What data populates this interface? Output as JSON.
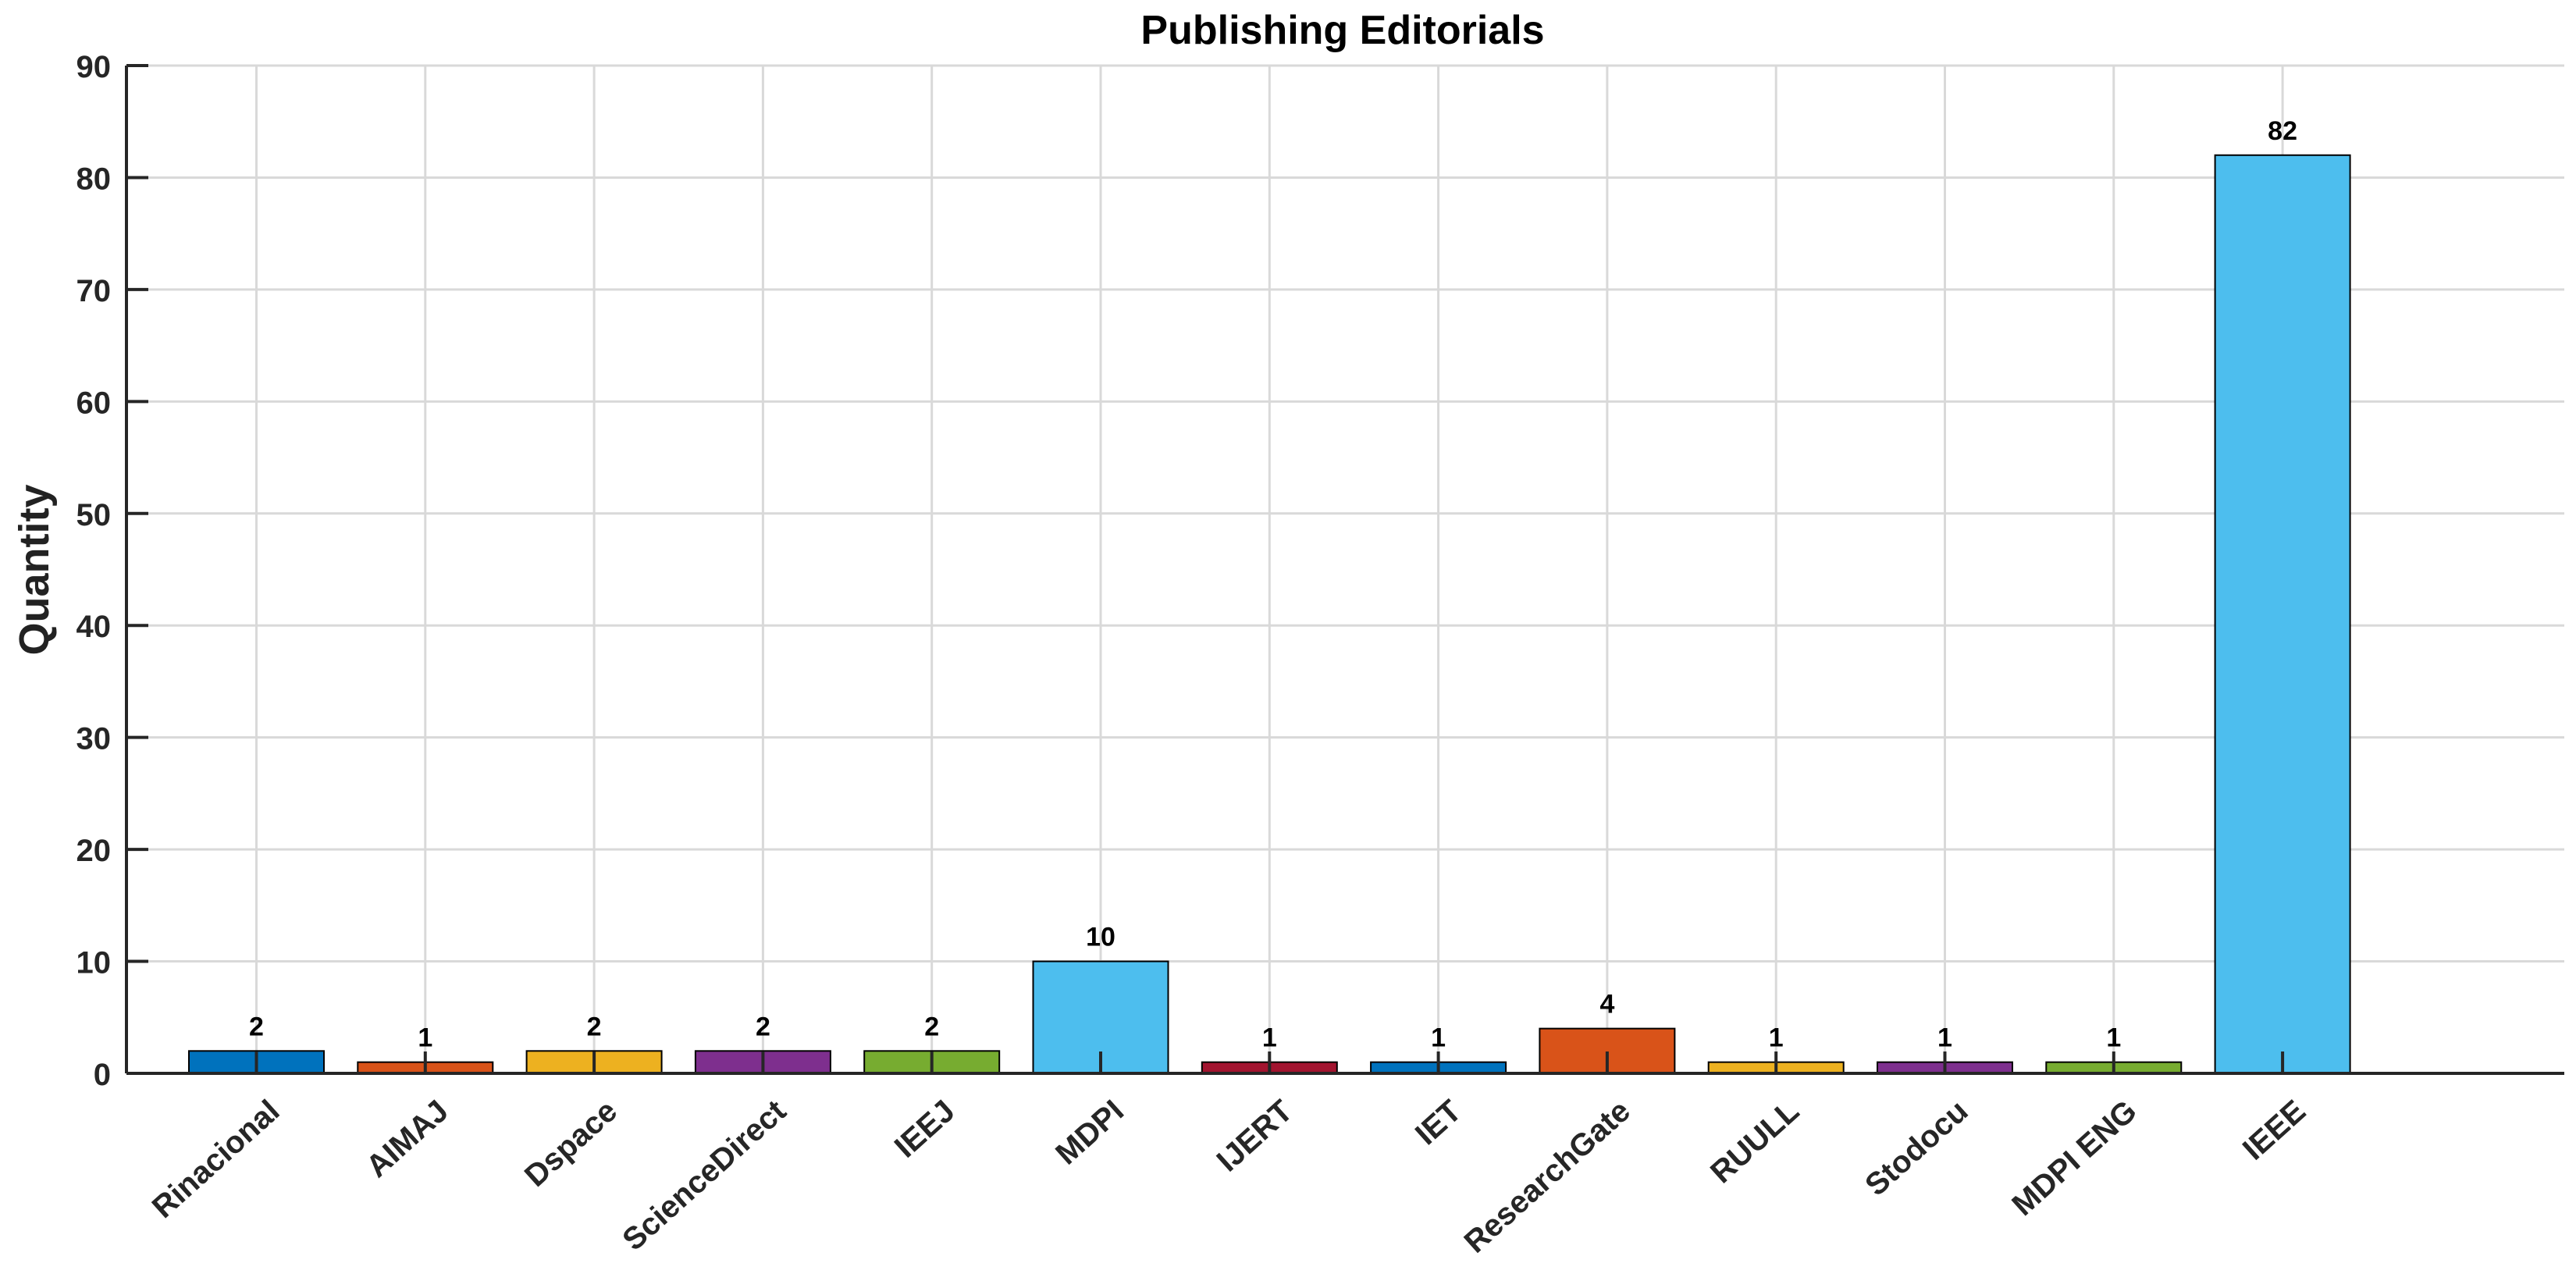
{
  "chart_data": {
    "type": "bar",
    "title": "Publishing Editorials",
    "xlabel": "",
    "ylabel": "Quantity",
    "ylim": [
      0,
      90
    ],
    "yticks": [
      0,
      10,
      20,
      30,
      40,
      50,
      60,
      70,
      80,
      90
    ],
    "grid": true,
    "categories": [
      "Rinacional",
      "AIMAJ",
      "Dspace",
      "ScienceDirect",
      "IEEJ",
      "MDPI",
      "IJERT",
      "IET",
      "ResearchGate",
      "RUULL",
      "Stodocu",
      "MDPI ENG",
      "IEEE"
    ],
    "values": [
      2,
      1,
      2,
      2,
      2,
      10,
      1,
      1,
      4,
      1,
      1,
      1,
      82
    ],
    "data_labels": [
      "2",
      "1",
      "2",
      "2",
      "2",
      "10",
      "1",
      "1",
      "4",
      "1",
      "1",
      "1",
      "82"
    ],
    "colors": [
      "#0072bd",
      "#d95319",
      "#edb120",
      "#7e2f8e",
      "#77ac30",
      "#4dbeee",
      "#a2142f",
      "#0072bd",
      "#d95319",
      "#edb120",
      "#7e2f8e",
      "#77ac30",
      "#4dbeee"
    ]
  }
}
